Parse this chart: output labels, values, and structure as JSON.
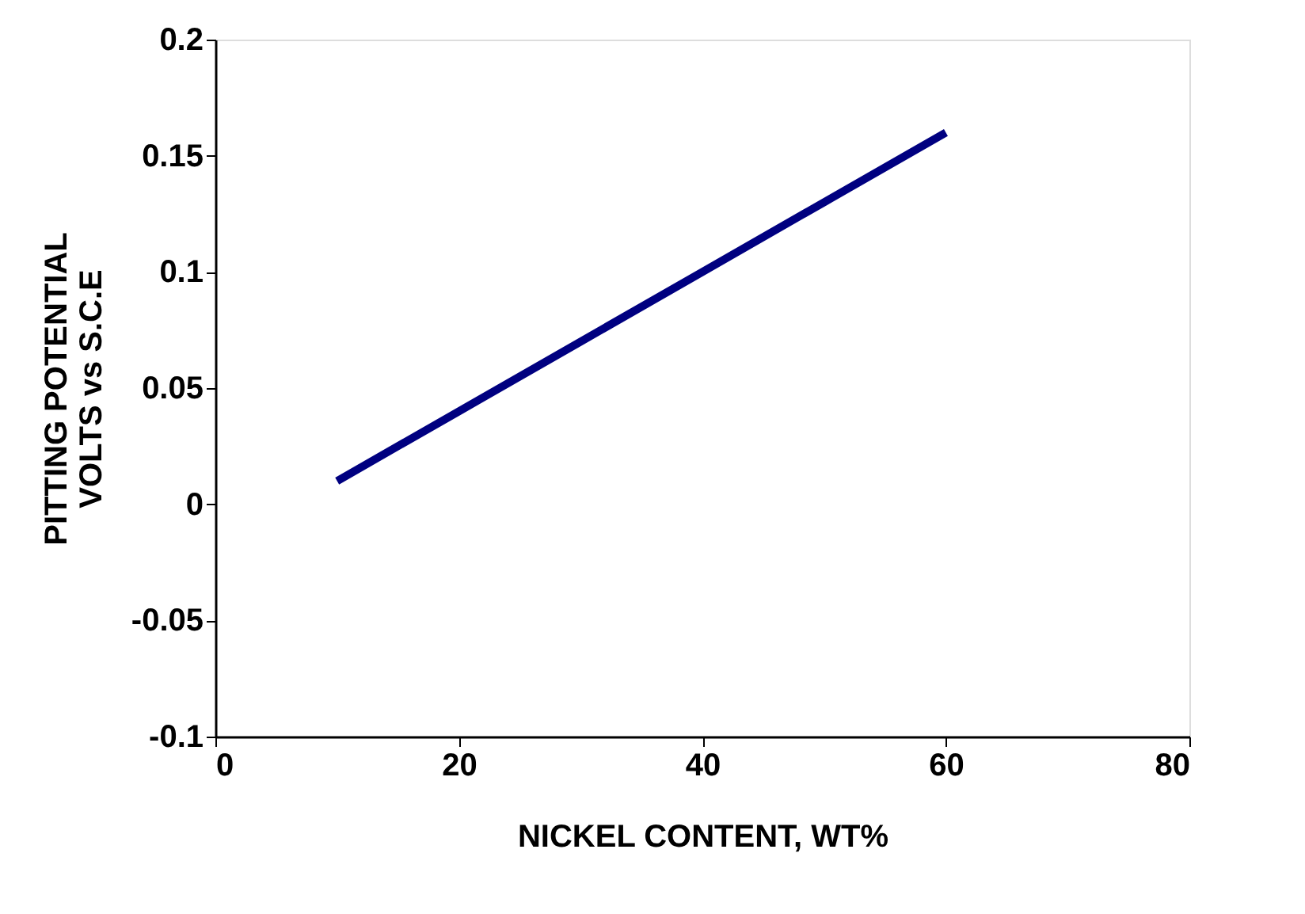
{
  "chart_data": {
    "type": "line",
    "xlabel": "NICKEL CONTENT, WT%",
    "ylabel": "PITTING POTENTIAL\nVOLTS vs S.C.E",
    "x": [
      10,
      20,
      30,
      40,
      50,
      60
    ],
    "series": [
      {
        "color": "#000080",
        "values": [
          0.01,
          0.04,
          0.07,
          0.1,
          0.13,
          0.16
        ]
      }
    ],
    "xlim": [
      0,
      80
    ],
    "xticks": [
      0,
      20,
      40,
      60,
      80
    ],
    "ylim": [
      -0.1,
      0.2
    ],
    "yticks": [
      -0.1,
      -0.05,
      0,
      0.05,
      0.1,
      0.15,
      0.2
    ],
    "grid": false,
    "marker": "none",
    "line_style": "solid"
  }
}
